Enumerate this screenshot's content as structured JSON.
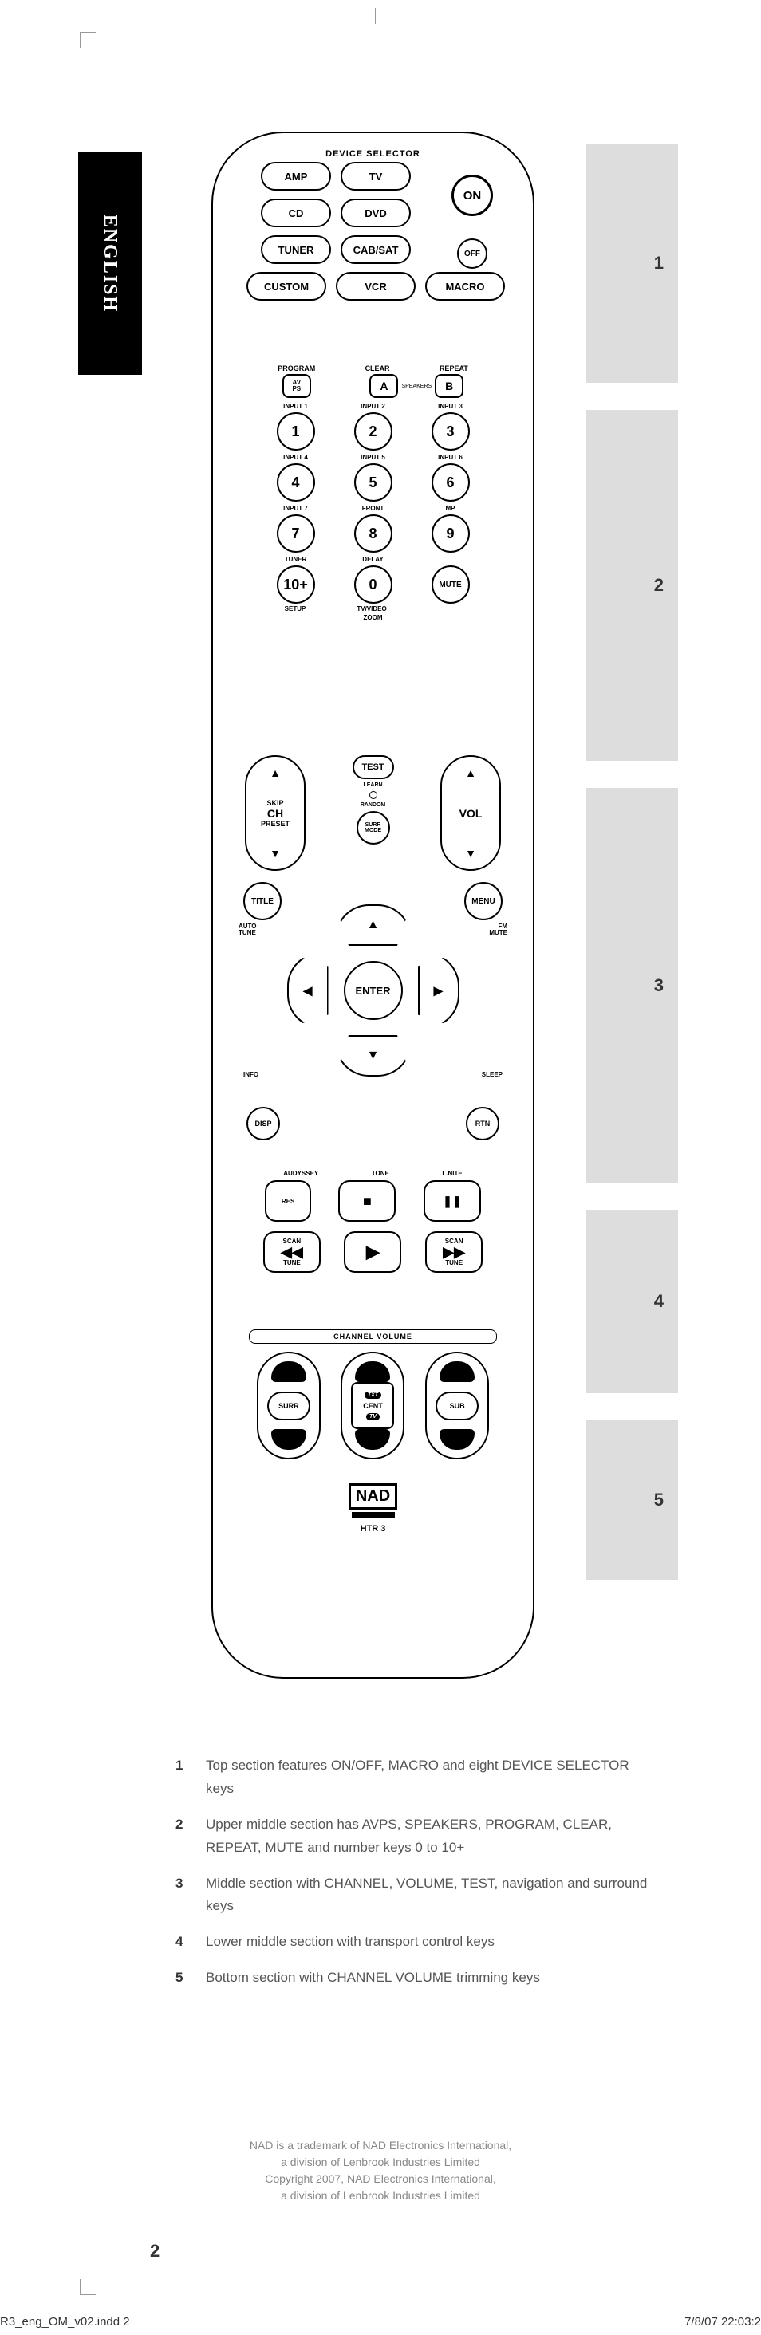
{
  "lang_tab": "ENGLISH",
  "zones": [
    "1",
    "2",
    "3",
    "4",
    "5"
  ],
  "s1": {
    "title": "DEVICE  SELECTOR",
    "buttons": [
      "AMP",
      "TV",
      "CD",
      "DVD",
      "TUNER",
      "CAB/SAT"
    ],
    "row4": [
      "CUSTOM",
      "VCR",
      "MACRO"
    ],
    "on": "ON",
    "off": "OFF"
  },
  "s2": {
    "top_labels": [
      "PROGRAM",
      "CLEAR",
      "REPEAT"
    ],
    "avps_top": "AV",
    "avps_bot": "PS",
    "a": "A",
    "speakers": "SPEAKERS",
    "b": "B",
    "numpad": [
      {
        "lbl": "INPUT 1",
        "n": "1"
      },
      {
        "lbl": "INPUT 2",
        "n": "2"
      },
      {
        "lbl": "INPUT 3",
        "n": "3"
      },
      {
        "lbl": "INPUT 4",
        "n": "4"
      },
      {
        "lbl": "INPUT 5",
        "n": "5"
      },
      {
        "lbl": "INPUT 6",
        "n": "6"
      },
      {
        "lbl": "INPUT 7",
        "n": "7"
      },
      {
        "lbl": "FRONT",
        "n": "8"
      },
      {
        "lbl": "MP",
        "n": "9"
      },
      {
        "lbl": "TUNER",
        "n": "10+"
      },
      {
        "lbl": "DELAY",
        "n": "0"
      },
      {
        "lbl": "",
        "n": "MUTE"
      }
    ],
    "setup": "SETUP",
    "tvvideo": "TV/VIDEO",
    "zoom": "ZOOM"
  },
  "s3": {
    "ch_rocker": {
      "top": "SKIP",
      "mid": "CH",
      "bot": "PRESET"
    },
    "test": "TEST",
    "learn": "LEARN",
    "random": "RANDOM",
    "surr_top": "SURR",
    "surr_bot": "MODE",
    "vol": "VOL",
    "title": "TITLE",
    "menu": "MENU",
    "auto_tune": "AUTO\nTUNE",
    "fm_mute": "FM\nMUTE",
    "enter": "ENTER",
    "info": "INFO",
    "sleep": "SLEEP",
    "disp": "DISP",
    "rtn": "RTN"
  },
  "s4": {
    "labels": [
      "AUDYSSEY",
      "TONE",
      "L.NITE"
    ],
    "res": "RES",
    "stop": "■",
    "pause": "❚❚",
    "scan": "SCAN",
    "tune": "TUNE",
    "rew": "◀◀",
    "play": "▶",
    "ff": "▶▶"
  },
  "s5": {
    "title": "CHANNEL  VOLUME",
    "surr": "SURR",
    "cent": "CENT",
    "sub": "SUB",
    "txt": "TXT",
    "tv": "TV"
  },
  "logo": {
    "brand": "NAD",
    "model": "HTR 3"
  },
  "desc": [
    {
      "n": "1",
      "t": "Top section features ON/OFF, MACRO and eight DEVICE SELECTOR keys"
    },
    {
      "n": "2",
      "t": "Upper middle section has AVPS, SPEAKERS, PROGRAM, CLEAR, REPEAT, MUTE and number keys 0 to 10+"
    },
    {
      "n": "3",
      "t": "Middle section with CHANNEL, VOLUME, TEST, navigation and surround keys"
    },
    {
      "n": "4",
      "t": "Lower middle section with transport control keys"
    },
    {
      "n": "5",
      "t": "Bottom section with CHANNEL VOLUME trimming keys"
    }
  ],
  "footer": [
    "NAD is a trademark of NAD Electronics International,",
    "a division of Lenbrook Industries Limited",
    "Copyright 2007, NAD Electronics International,",
    "a division of Lenbrook Industries Limited"
  ],
  "pagenum": "2",
  "slug_l": "R3_eng_OM_v02.indd   2",
  "slug_r": "7/8/07   22:03:2"
}
